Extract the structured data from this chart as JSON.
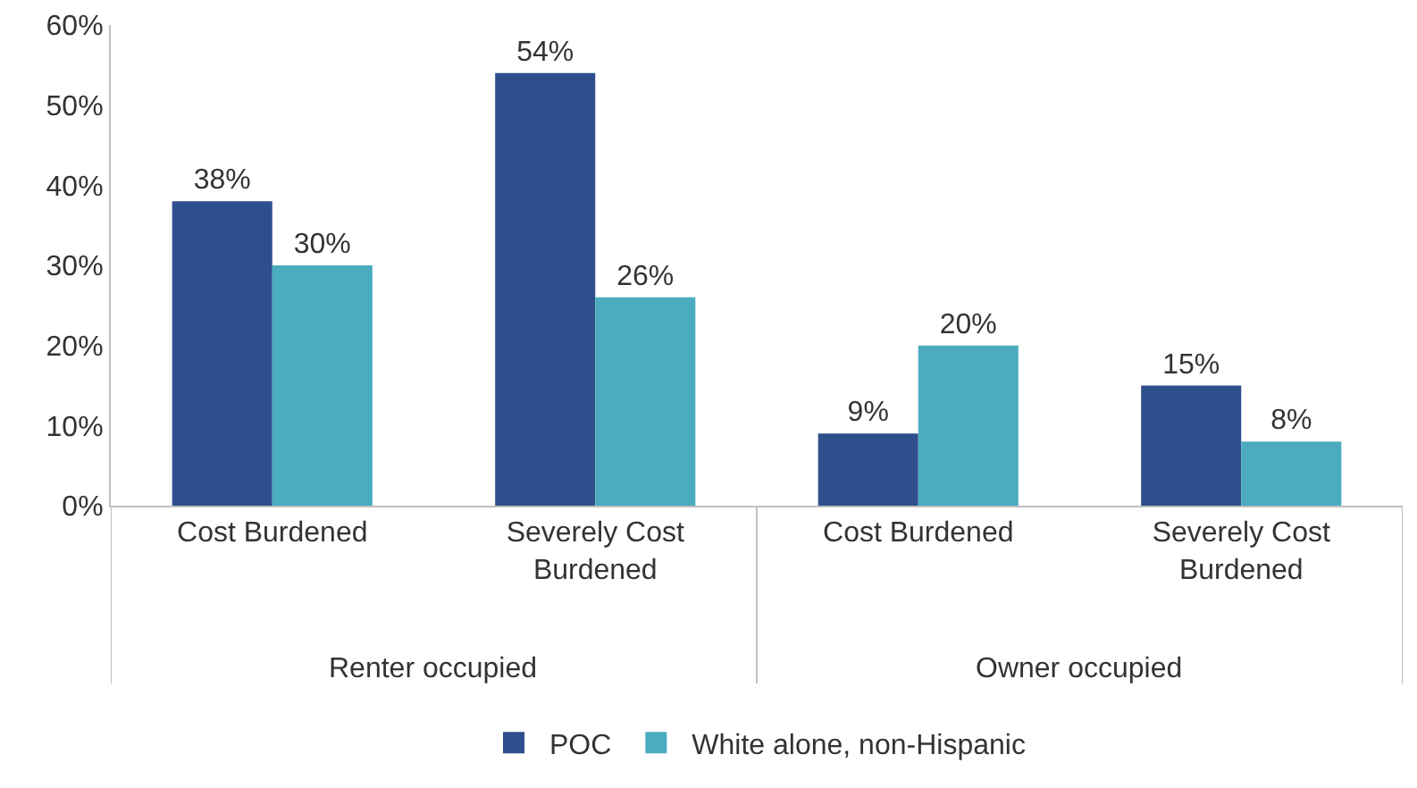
{
  "chart_data": {
    "type": "bar",
    "categories": [
      "Cost Burdened",
      "Severely Cost Burdened",
      "Cost Burdened",
      "Severely Cost Burdened"
    ],
    "series": [
      {
        "name": "POC",
        "color": "#2e4f8c",
        "values": [
          38,
          54,
          9,
          15
        ],
        "value_labels": [
          "38%",
          "54%",
          "9%",
          "15%"
        ]
      },
      {
        "name": "White alone, non-Hispanic",
        "color": "#4bacc0",
        "values": [
          30,
          26,
          20,
          8
        ],
        "value_labels": [
          "30%",
          "26%",
          "20%",
          "8%"
        ]
      }
    ],
    "annotations": [
      "Renter occupied",
      "Owner occupied"
    ],
    "ylim": [
      0,
      60
    ],
    "yticks": [
      {
        "value": 0,
        "label": "0%"
      },
      {
        "value": 10,
        "label": "10%"
      },
      {
        "value": 20,
        "label": "20%"
      },
      {
        "value": 30,
        "label": "30%"
      },
      {
        "value": 40,
        "label": "40%"
      },
      {
        "value": 50,
        "label": "50%"
      },
      {
        "value": 60,
        "label": "60%"
      }
    ],
    "grid": false,
    "legend": "bottom"
  }
}
